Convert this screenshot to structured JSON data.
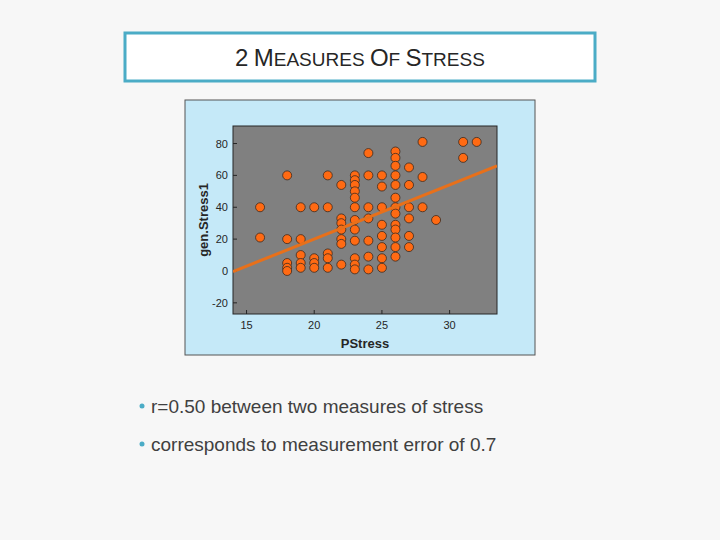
{
  "slide": {
    "title": "2 MEASURES OF STRESS",
    "bullets": [
      "r=0.50 between two measures of stress",
      "corresponds to measurement error of 0.7"
    ]
  },
  "chart_data": {
    "type": "scatter",
    "x_label": "PStress",
    "y_label": "gen.Stress1",
    "xlim": [
      14,
      33.5
    ],
    "xticks": [
      15,
      20,
      25,
      30
    ],
    "ylim": [
      -27,
      91
    ],
    "yticks": [
      -20,
      0,
      20,
      40,
      60,
      80
    ],
    "grid": false,
    "series": [
      {
        "type": "scatter",
        "color": "#ff6a13",
        "marker": "circle",
        "x": [
          16,
          16,
          18,
          18,
          18,
          18,
          18,
          19,
          19,
          19,
          19,
          19,
          20,
          20,
          20,
          20,
          21,
          21,
          21,
          21,
          21,
          22,
          22,
          22,
          22,
          22,
          22,
          22,
          23,
          23,
          23,
          23,
          23,
          23,
          23,
          23,
          23,
          23,
          23,
          23,
          24,
          24,
          24,
          24,
          24,
          24,
          24,
          25,
          25,
          25,
          25,
          25,
          25,
          25,
          25,
          26,
          26,
          26,
          26,
          26,
          26,
          26,
          26,
          26,
          26,
          26,
          26,
          26,
          27,
          27,
          27,
          27,
          27,
          27,
          28,
          28,
          28,
          29,
          31,
          31,
          32
        ],
        "values": [
          40,
          21,
          60,
          20,
          5,
          2,
          0,
          40,
          20,
          10,
          5,
          2,
          40,
          8,
          5,
          2,
          60,
          40,
          11,
          8,
          2,
          54,
          33,
          30,
          26,
          20,
          17,
          4,
          60,
          57,
          54,
          50,
          46,
          40,
          32,
          26,
          19,
          8,
          4,
          1,
          74,
          60,
          40,
          33,
          19,
          9,
          1,
          60,
          53,
          40,
          29,
          22,
          15,
          8,
          2,
          75,
          71,
          66,
          60,
          54,
          46,
          40,
          36,
          29,
          26,
          21,
          15,
          9,
          65,
          54,
          40,
          33,
          22,
          15,
          81,
          59,
          40,
          32,
          81,
          71,
          81
        ]
      },
      {
        "type": "line",
        "color": "#e8701a",
        "line_style": "solid",
        "x": [
          14,
          33.5
        ],
        "values": [
          -0.4,
          66
        ]
      }
    ]
  }
}
